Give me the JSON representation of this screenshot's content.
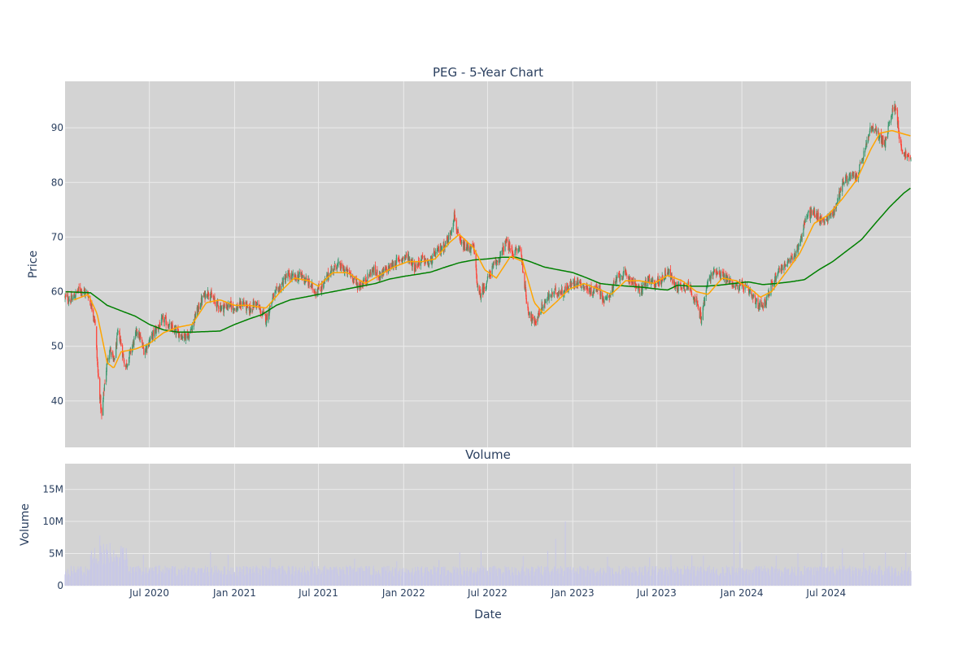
{
  "chart_data": [
    {
      "type": "candlestick",
      "title": "PEG - 5-Year Chart",
      "ylabel": "Price",
      "ylim": [
        31.5,
        98.5
      ],
      "xlim": [
        "2020-01-01",
        "2024-12-31"
      ],
      "grid": true,
      "legend": "none",
      "colors": {
        "up": "#3d9970",
        "down": "#ff4136",
        "ma_short": "#ffa500",
        "ma_long": "#008000",
        "background": "#d3d3d3"
      },
      "y_ticks": [
        40,
        50,
        60,
        70,
        80,
        90
      ],
      "x_ticks": [
        {
          "date": "2020-07-01",
          "label": "Jul 2020"
        },
        {
          "date": "2021-01-01",
          "label": "Jan 2021"
        },
        {
          "date": "2021-07-01",
          "label": "Jul 2021"
        },
        {
          "date": "2022-01-01",
          "label": "Jan 2022"
        },
        {
          "date": "2022-07-01",
          "label": "Jul 2022"
        },
        {
          "date": "2023-01-01",
          "label": "Jan 2023"
        },
        {
          "date": "2023-07-01",
          "label": "Jul 2023"
        },
        {
          "date": "2024-01-01",
          "label": "Jan 2024"
        },
        {
          "date": "2024-07-01",
          "label": "Jul 2024"
        }
      ],
      "close_anchors": [
        [
          "2020-01-02",
          59
        ],
        [
          "2020-01-15",
          58.5
        ],
        [
          "2020-02-01",
          60.5
        ],
        [
          "2020-02-20",
          59.5
        ],
        [
          "2020-03-05",
          55
        ],
        [
          "2020-03-12",
          45
        ],
        [
          "2020-03-20",
          37
        ],
        [
          "2020-03-26",
          43
        ],
        [
          "2020-04-05",
          50
        ],
        [
          "2020-04-15",
          47
        ],
        [
          "2020-04-25",
          53
        ],
        [
          "2020-05-10",
          46
        ],
        [
          "2020-05-25",
          50
        ],
        [
          "2020-06-05",
          53
        ],
        [
          "2020-06-20",
          49
        ],
        [
          "2020-07-01",
          51
        ],
        [
          "2020-07-15",
          53
        ],
        [
          "2020-08-01",
          55
        ],
        [
          "2020-08-20",
          53
        ],
        [
          "2020-09-10",
          52
        ],
        [
          "2020-09-25",
          52
        ],
        [
          "2020-10-10",
          56
        ],
        [
          "2020-10-25",
          59
        ],
        [
          "2020-11-05",
          60
        ],
        [
          "2020-11-20",
          58
        ],
        [
          "2020-12-05",
          57
        ],
        [
          "2020-12-20",
          57.5
        ],
        [
          "2021-01-05",
          57
        ],
        [
          "2021-01-20",
          58
        ],
        [
          "2021-02-01",
          56.5
        ],
        [
          "2021-02-15",
          58
        ],
        [
          "2021-03-01",
          56
        ],
        [
          "2021-03-10",
          55
        ],
        [
          "2021-03-25",
          59
        ],
        [
          "2021-04-10",
          61
        ],
        [
          "2021-04-25",
          63
        ],
        [
          "2021-05-10",
          62.5
        ],
        [
          "2021-05-25",
          63
        ],
        [
          "2021-06-10",
          61.5
        ],
        [
          "2021-06-25",
          60
        ],
        [
          "2021-07-10",
          61
        ],
        [
          "2021-07-25",
          63.5
        ],
        [
          "2021-08-10",
          65
        ],
        [
          "2021-08-25",
          64
        ],
        [
          "2021-09-10",
          63
        ],
        [
          "2021-09-25",
          61
        ],
        [
          "2021-10-10",
          62
        ],
        [
          "2021-10-25",
          64
        ],
        [
          "2021-11-10",
          63
        ],
        [
          "2021-11-25",
          64
        ],
        [
          "2021-12-10",
          65
        ],
        [
          "2021-12-25",
          66
        ],
        [
          "2022-01-10",
          66.5
        ],
        [
          "2022-01-25",
          64.5
        ],
        [
          "2022-02-10",
          66
        ],
        [
          "2022-02-25",
          65
        ],
        [
          "2022-03-10",
          67
        ],
        [
          "2022-03-25",
          68
        ],
        [
          "2022-04-10",
          70
        ],
        [
          "2022-04-20",
          74
        ],
        [
          "2022-05-01",
          69
        ],
        [
          "2022-05-15",
          68
        ],
        [
          "2022-06-01",
          68
        ],
        [
          "2022-06-12",
          59
        ],
        [
          "2022-06-25",
          61
        ],
        [
          "2022-07-10",
          64
        ],
        [
          "2022-07-25",
          66
        ],
        [
          "2022-08-10",
          69
        ],
        [
          "2022-08-25",
          67
        ],
        [
          "2022-09-10",
          68
        ],
        [
          "2022-09-25",
          57
        ],
        [
          "2022-10-10",
          54
        ],
        [
          "2022-10-25",
          57
        ],
        [
          "2022-11-10",
          59
        ],
        [
          "2022-11-25",
          60
        ],
        [
          "2022-12-10",
          60
        ],
        [
          "2022-12-25",
          61
        ],
        [
          "2023-01-10",
          62
        ],
        [
          "2023-01-25",
          61
        ],
        [
          "2023-02-10",
          60
        ],
        [
          "2023-02-25",
          61
        ],
        [
          "2023-03-10",
          58
        ],
        [
          "2023-03-25",
          60
        ],
        [
          "2023-04-10",
          63
        ],
        [
          "2023-04-25",
          63
        ],
        [
          "2023-05-10",
          62
        ],
        [
          "2023-05-25",
          60
        ],
        [
          "2023-06-10",
          62
        ],
        [
          "2023-06-25",
          61.5
        ],
        [
          "2023-07-10",
          62
        ],
        [
          "2023-07-25",
          64
        ],
        [
          "2023-08-10",
          61
        ],
        [
          "2023-08-25",
          61
        ],
        [
          "2023-09-10",
          61
        ],
        [
          "2023-09-25",
          58
        ],
        [
          "2023-10-05",
          55
        ],
        [
          "2023-10-20",
          62
        ],
        [
          "2023-11-05",
          64
        ],
        [
          "2023-11-20",
          63
        ],
        [
          "2023-12-05",
          62
        ],
        [
          "2023-12-20",
          61
        ],
        [
          "2024-01-05",
          61
        ],
        [
          "2024-01-20",
          59.5
        ],
        [
          "2024-02-05",
          57.5
        ],
        [
          "2024-02-20",
          58
        ],
        [
          "2024-03-05",
          61
        ],
        [
          "2024-03-20",
          64
        ],
        [
          "2024-04-05",
          65
        ],
        [
          "2024-04-20",
          66
        ],
        [
          "2024-05-05",
          69
        ],
        [
          "2024-05-20",
          74
        ],
        [
          "2024-06-05",
          74.5
        ],
        [
          "2024-06-20",
          73
        ],
        [
          "2024-07-05",
          73.5
        ],
        [
          "2024-07-20",
          75
        ],
        [
          "2024-08-05",
          80
        ],
        [
          "2024-08-20",
          81
        ],
        [
          "2024-09-05",
          81
        ],
        [
          "2024-09-20",
          85
        ],
        [
          "2024-10-05",
          90
        ],
        [
          "2024-10-20",
          89
        ],
        [
          "2024-11-05",
          87
        ],
        [
          "2024-11-20",
          93
        ],
        [
          "2024-11-28",
          94
        ],
        [
          "2024-12-10",
          86
        ],
        [
          "2024-12-31",
          84
        ]
      ],
      "ma_short_anchors": [
        [
          "2020-01-20",
          58.5
        ],
        [
          "2020-02-20",
          59.5
        ],
        [
          "2020-03-10",
          56
        ],
        [
          "2020-04-01",
          47
        ],
        [
          "2020-04-15",
          46
        ],
        [
          "2020-05-01",
          49
        ],
        [
          "2020-06-01",
          49.5
        ],
        [
          "2020-07-01",
          50.5
        ],
        [
          "2020-08-01",
          52.5
        ],
        [
          "2020-09-01",
          53.5
        ],
        [
          "2020-10-01",
          54
        ],
        [
          "2020-11-01",
          58
        ],
        [
          "2020-12-01",
          58.5
        ],
        [
          "2021-01-01",
          57.5
        ],
        [
          "2021-02-01",
          57.5
        ],
        [
          "2021-03-10",
          57
        ],
        [
          "2021-04-10",
          60
        ],
        [
          "2021-05-10",
          62.5
        ],
        [
          "2021-06-10",
          62
        ],
        [
          "2021-07-01",
          61
        ],
        [
          "2021-08-01",
          63.5
        ],
        [
          "2021-09-01",
          63.5
        ],
        [
          "2021-10-10",
          61.5
        ],
        [
          "2021-11-10",
          63
        ],
        [
          "2021-12-10",
          64.5
        ],
        [
          "2022-01-10",
          65.5
        ],
        [
          "2022-02-10",
          65.5
        ],
        [
          "2022-03-10",
          66
        ],
        [
          "2022-04-10",
          69
        ],
        [
          "2022-05-01",
          70.5
        ],
        [
          "2022-06-01",
          68
        ],
        [
          "2022-06-25",
          64
        ],
        [
          "2022-07-20",
          62.5
        ],
        [
          "2022-08-20",
          66.5
        ],
        [
          "2022-09-15",
          65.5
        ],
        [
          "2022-10-10",
          58
        ],
        [
          "2022-10-30",
          56
        ],
        [
          "2022-11-25",
          58
        ],
        [
          "2022-12-25",
          60.5
        ],
        [
          "2023-01-25",
          61.5
        ],
        [
          "2023-02-25",
          60.5
        ],
        [
          "2023-03-25",
          59.5
        ],
        [
          "2023-04-25",
          62
        ],
        [
          "2023-05-25",
          62
        ],
        [
          "2023-06-25",
          61.5
        ],
        [
          "2023-07-25",
          63
        ],
        [
          "2023-08-25",
          62
        ],
        [
          "2023-09-25",
          60
        ],
        [
          "2023-10-20",
          59.5
        ],
        [
          "2023-11-20",
          62.5
        ],
        [
          "2023-12-20",
          62
        ],
        [
          "2024-01-20",
          60.5
        ],
        [
          "2024-02-10",
          59
        ],
        [
          "2024-03-05",
          60
        ],
        [
          "2024-04-05",
          63.5
        ],
        [
          "2024-05-05",
          67
        ],
        [
          "2024-06-05",
          72.5
        ],
        [
          "2024-07-05",
          74
        ],
        [
          "2024-08-05",
          77
        ],
        [
          "2024-09-05",
          80.5
        ],
        [
          "2024-10-05",
          86
        ],
        [
          "2024-10-25",
          89
        ],
        [
          "2024-11-20",
          89.5
        ],
        [
          "2024-12-10",
          89
        ],
        [
          "2024-12-31",
          88.5
        ]
      ],
      "ma_long_anchors": [
        [
          "2020-01-02",
          60
        ],
        [
          "2020-02-25",
          59.8
        ],
        [
          "2020-04-01",
          57.5
        ],
        [
          "2020-05-01",
          56.5
        ],
        [
          "2020-06-01",
          55.5
        ],
        [
          "2020-07-01",
          54
        ],
        [
          "2020-08-01",
          53
        ],
        [
          "2020-09-01",
          52.6
        ],
        [
          "2020-10-01",
          52.6
        ],
        [
          "2020-12-01",
          52.8
        ],
        [
          "2021-01-01",
          54
        ],
        [
          "2021-02-01",
          55
        ],
        [
          "2021-03-01",
          55.8
        ],
        [
          "2021-04-01",
          57.5
        ],
        [
          "2021-05-01",
          58.5
        ],
        [
          "2021-06-01",
          59
        ],
        [
          "2021-07-01",
          59.5
        ],
        [
          "2021-08-01",
          60
        ],
        [
          "2021-09-01",
          60.5
        ],
        [
          "2021-10-01",
          61
        ],
        [
          "2021-11-01",
          61.5
        ],
        [
          "2021-12-01",
          62.3
        ],
        [
          "2022-01-01",
          62.8
        ],
        [
          "2022-02-01",
          63.2
        ],
        [
          "2022-03-01",
          63.6
        ],
        [
          "2022-04-01",
          64.5
        ],
        [
          "2022-05-01",
          65.3
        ],
        [
          "2022-06-01",
          65.8
        ],
        [
          "2022-07-01",
          66
        ],
        [
          "2022-08-01",
          66.3
        ],
        [
          "2022-09-01",
          66.3
        ],
        [
          "2022-10-01",
          65.5
        ],
        [
          "2022-11-01",
          64.5
        ],
        [
          "2022-12-01",
          64
        ],
        [
          "2023-01-01",
          63.5
        ],
        [
          "2023-02-01",
          62.5
        ],
        [
          "2023-03-01",
          61.5
        ],
        [
          "2023-04-01",
          61.2
        ],
        [
          "2023-05-01",
          61
        ],
        [
          "2023-06-01",
          60.8
        ],
        [
          "2023-07-01",
          60.5
        ],
        [
          "2023-07-25",
          60.3
        ],
        [
          "2023-08-15",
          61.2
        ],
        [
          "2023-09-15",
          61
        ],
        [
          "2023-10-15",
          61
        ],
        [
          "2023-11-15",
          61.2
        ],
        [
          "2023-12-15",
          61.5
        ],
        [
          "2024-01-15",
          61.8
        ],
        [
          "2024-02-15",
          61.3
        ],
        [
          "2024-03-15",
          61.5
        ],
        [
          "2024-04-15",
          61.8
        ],
        [
          "2024-05-15",
          62.2
        ],
        [
          "2024-06-15",
          64
        ],
        [
          "2024-07-15",
          65.5
        ],
        [
          "2024-08-15",
          67.5
        ],
        [
          "2024-09-15",
          69.5
        ],
        [
          "2024-10-15",
          72.5
        ],
        [
          "2024-11-15",
          75.5
        ],
        [
          "2024-12-15",
          78
        ],
        [
          "2024-12-31",
          79
        ]
      ]
    },
    {
      "type": "bar",
      "title": "Volume",
      "xlabel": "Date",
      "ylabel": "Volume",
      "ylim": [
        0,
        19000000
      ],
      "grid": true,
      "colors": {
        "bar": "#c8c8e6",
        "background": "#d3d3d3"
      },
      "y_ticks": [
        {
          "value": 0,
          "label": "0"
        },
        {
          "value": 5000000,
          "label": "5M"
        },
        {
          "value": 10000000,
          "label": "10M"
        },
        {
          "value": 15000000,
          "label": "15M"
        }
      ],
      "x_ticks": [
        {
          "date": "2020-07-01",
          "label": "Jul 2020"
        },
        {
          "date": "2021-01-01",
          "label": "Jan 2021"
        },
        {
          "date": "2021-07-01",
          "label": "Jul 2021"
        },
        {
          "date": "2022-01-01",
          "label": "Jan 2022"
        },
        {
          "date": "2022-07-01",
          "label": "Jul 2022"
        },
        {
          "date": "2023-01-01",
          "label": "Jan 2023"
        },
        {
          "date": "2023-07-01",
          "label": "Jul 2023"
        },
        {
          "date": "2024-01-01",
          "label": "Jan 2024"
        },
        {
          "date": "2024-07-01",
          "label": "Jul 2024"
        }
      ],
      "base_volume": 2400000,
      "spikes": [
        [
          "2020-03-16",
          7800000
        ],
        [
          "2020-03-24",
          6500000
        ],
        [
          "2020-03-05",
          5200000
        ],
        [
          "2020-04-10",
          4500000
        ],
        [
          "2020-06-18",
          4800000
        ],
        [
          "2020-11-10",
          5300000
        ],
        [
          "2020-12-18",
          4800000
        ],
        [
          "2021-03-19",
          4300000
        ],
        [
          "2021-06-18",
          3800000
        ],
        [
          "2021-09-17",
          4200000
        ],
        [
          "2021-12-17",
          3800000
        ],
        [
          "2022-03-18",
          4000000
        ],
        [
          "2022-05-02",
          5200000
        ],
        [
          "2022-06-17",
          5400000
        ],
        [
          "2022-09-16",
          4600000
        ],
        [
          "2022-11-08",
          5400000
        ],
        [
          "2022-11-25",
          7300000
        ],
        [
          "2022-12-16",
          10000000
        ],
        [
          "2023-03-17",
          4500000
        ],
        [
          "2023-06-16",
          4400000
        ],
        [
          "2023-08-01",
          4800000
        ],
        [
          "2023-09-15",
          4700000
        ],
        [
          "2023-10-10",
          4700000
        ],
        [
          "2023-12-15",
          18500000
        ],
        [
          "2023-12-28",
          6800000
        ],
        [
          "2024-03-15",
          4700000
        ],
        [
          "2024-05-01",
          5000000
        ],
        [
          "2024-06-21",
          5100000
        ],
        [
          "2024-08-05",
          5800000
        ],
        [
          "2024-09-20",
          5100000
        ],
        [
          "2024-11-06",
          5200000
        ],
        [
          "2024-12-20",
          5200000
        ]
      ]
    }
  ]
}
